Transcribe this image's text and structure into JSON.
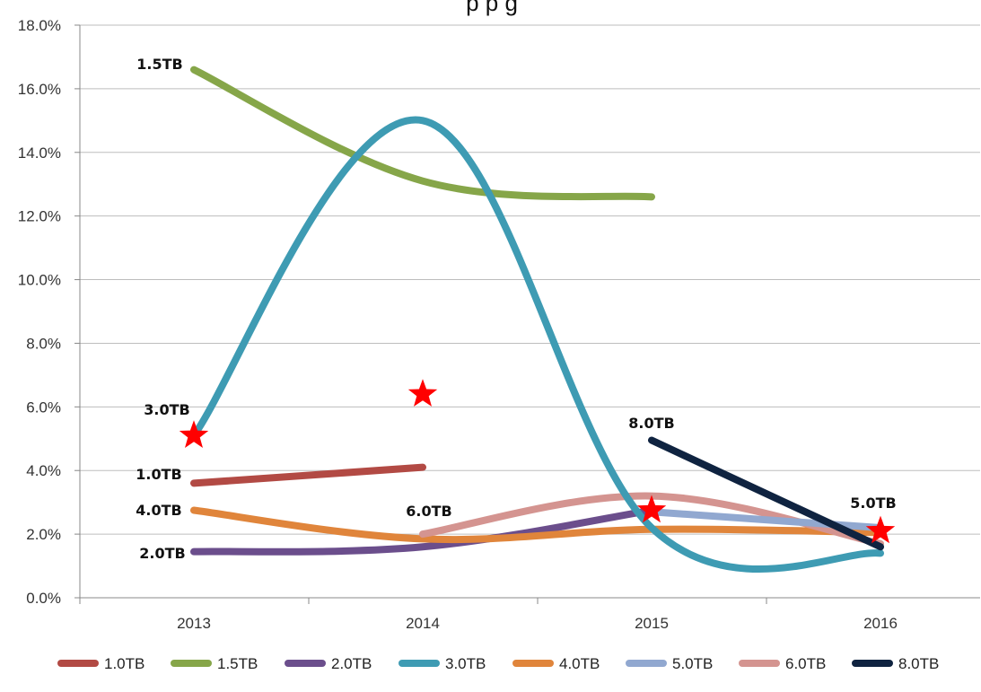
{
  "chart_data": {
    "type": "line",
    "title": "",
    "title_visible_fragment": "p      p           g",
    "categories": [
      "2013",
      "2014",
      "2015",
      "2016"
    ],
    "ylim": [
      0,
      18
    ],
    "y_ticks": [
      "0.0%",
      "2.0%",
      "4.0%",
      "6.0%",
      "8.0%",
      "10.0%",
      "12.0%",
      "14.0%",
      "16.0%",
      "18.0%"
    ],
    "grid": "horizontal",
    "legend_position": "bottom",
    "series": [
      {
        "name": "1.0TB",
        "color": "#b24a44",
        "values": [
          3.6,
          4.1,
          null,
          null
        ]
      },
      {
        "name": "1.5TB",
        "color": "#86a649",
        "values": [
          16.6,
          13.1,
          12.6,
          null
        ]
      },
      {
        "name": "2.0TB",
        "color": "#6b4e8c",
        "values": [
          1.45,
          1.6,
          2.75,
          null
        ]
      },
      {
        "name": "3.0TB",
        "color": "#3e9bb3",
        "values": [
          5.1,
          15.0,
          2.2,
          1.4
        ]
      },
      {
        "name": "4.0TB",
        "color": "#e0853b",
        "values": [
          2.75,
          1.85,
          2.15,
          2.05
        ]
      },
      {
        "name": "5.0TB",
        "color": "#91a8d0",
        "values": [
          null,
          null,
          2.7,
          2.2
        ]
      },
      {
        "name": "6.0TB",
        "color": "#d49490",
        "values": [
          null,
          2.0,
          3.2,
          1.7
        ]
      },
      {
        "name": "8.0TB",
        "color": "#0f2340",
        "values": [
          null,
          null,
          4.95,
          1.6
        ]
      }
    ],
    "point_labels": [
      {
        "text": "1.5TB",
        "series": "1.5TB"
      },
      {
        "text": "3.0TB",
        "series": "3.0TB"
      },
      {
        "text": "1.0TB",
        "series": "1.0TB"
      },
      {
        "text": "4.0TB",
        "series": "4.0TB"
      },
      {
        "text": "2.0TB",
        "series": "2.0TB"
      },
      {
        "text": "6.0TB",
        "series": "6.0TB"
      },
      {
        "text": "8.0TB",
        "series": "8.0TB"
      },
      {
        "text": "5.0TB",
        "series": "5.0TB"
      }
    ],
    "star_markers": {
      "color": "#ff0000",
      "points": [
        {
          "x": "2013",
          "y": 5.1
        },
        {
          "x": "2014",
          "y": 6.4
        },
        {
          "x": "2015",
          "y": 2.75
        },
        {
          "x": "2016",
          "y": 2.1
        }
      ]
    }
  }
}
